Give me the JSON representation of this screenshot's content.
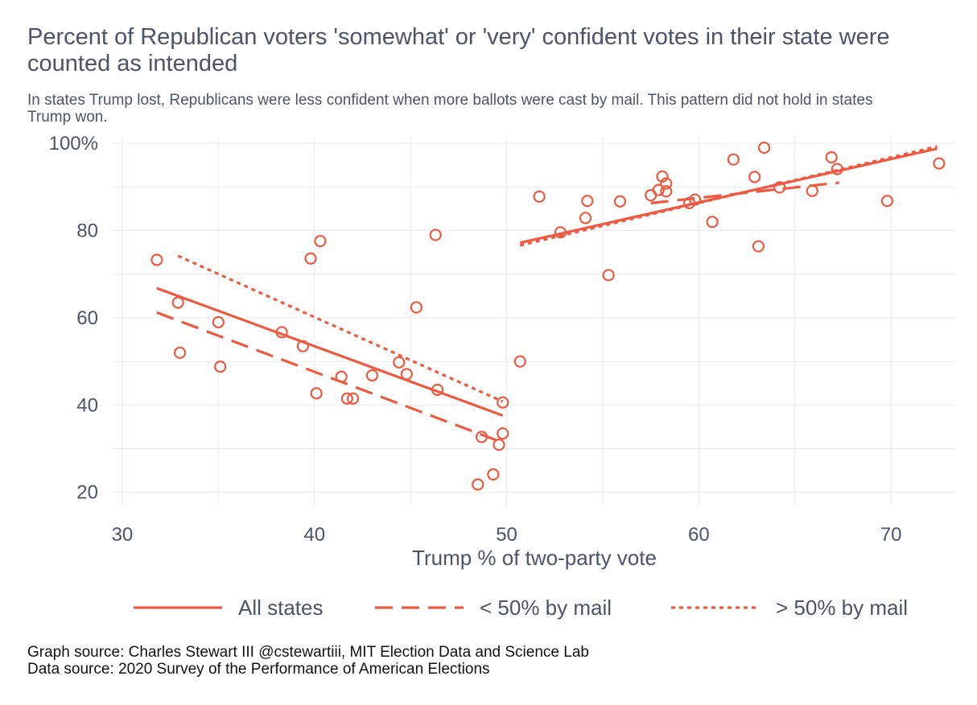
{
  "colors": {
    "accent": "#ee5a40",
    "text": "#4b5468",
    "grid": "#ebebeb"
  },
  "chart_data": {
    "type": "scatter",
    "title": "Percent of Republican voters 'somewhat' or 'very' confident votes in their state were counted as intended",
    "subtitle": "In states Trump lost, Republicans were less confident when more ballots were cast by mail. This pattern did not hold in states Trump won.",
    "xlabel": "Trump % of two-party vote",
    "ylabel": "",
    "xlim": [
      29.5,
      73.3
    ],
    "ylim": [
      17,
      101.5
    ],
    "x_ticks": [
      30,
      40,
      50,
      60,
      70
    ],
    "y_ticks": [
      20,
      40,
      60,
      80,
      100
    ],
    "y_tick_labels": [
      "20",
      "40",
      "60",
      "80",
      "100%"
    ],
    "grid": true,
    "legend_position": "bottom",
    "points": [
      {
        "x": 31.8,
        "y": 73.3
      },
      {
        "x": 32.9,
        "y": 63.5
      },
      {
        "x": 33.0,
        "y": 52.0
      },
      {
        "x": 35.0,
        "y": 59.0
      },
      {
        "x": 35.1,
        "y": 48.8
      },
      {
        "x": 38.3,
        "y": 56.7
      },
      {
        "x": 39.4,
        "y": 53.5
      },
      {
        "x": 39.8,
        "y": 73.6
      },
      {
        "x": 40.1,
        "y": 42.7
      },
      {
        "x": 40.3,
        "y": 77.6
      },
      {
        "x": 41.4,
        "y": 46.5
      },
      {
        "x": 41.7,
        "y": 41.5
      },
      {
        "x": 42.0,
        "y": 41.5
      },
      {
        "x": 43.0,
        "y": 46.8
      },
      {
        "x": 44.4,
        "y": 49.8
      },
      {
        "x": 44.8,
        "y": 47.1
      },
      {
        "x": 45.3,
        "y": 62.4
      },
      {
        "x": 46.3,
        "y": 79.0
      },
      {
        "x": 46.4,
        "y": 43.5
      },
      {
        "x": 48.5,
        "y": 21.8
      },
      {
        "x": 48.7,
        "y": 32.7
      },
      {
        "x": 49.3,
        "y": 24.1
      },
      {
        "x": 49.6,
        "y": 30.9
      },
      {
        "x": 49.8,
        "y": 33.5
      },
      {
        "x": 49.8,
        "y": 40.6
      },
      {
        "x": 50.7,
        "y": 50.0
      },
      {
        "x": 51.7,
        "y": 87.8
      },
      {
        "x": 52.8,
        "y": 79.6
      },
      {
        "x": 54.1,
        "y": 82.9
      },
      {
        "x": 54.2,
        "y": 86.8
      },
      {
        "x": 55.3,
        "y": 69.8
      },
      {
        "x": 55.9,
        "y": 86.7
      },
      {
        "x": 57.5,
        "y": 88.1
      },
      {
        "x": 57.9,
        "y": 89.3
      },
      {
        "x": 58.1,
        "y": 92.4
      },
      {
        "x": 58.3,
        "y": 90.8
      },
      {
        "x": 58.3,
        "y": 89.0
      },
      {
        "x": 59.5,
        "y": 86.3
      },
      {
        "x": 59.8,
        "y": 87.1
      },
      {
        "x": 60.7,
        "y": 82.0
      },
      {
        "x": 61.8,
        "y": 96.3
      },
      {
        "x": 62.9,
        "y": 92.3
      },
      {
        "x": 63.1,
        "y": 76.4
      },
      {
        "x": 63.4,
        "y": 99.0
      },
      {
        "x": 64.2,
        "y": 89.9
      },
      {
        "x": 65.9,
        "y": 89.1
      },
      {
        "x": 66.9,
        "y": 96.8
      },
      {
        "x": 67.2,
        "y": 94.1
      },
      {
        "x": 69.8,
        "y": 86.8
      },
      {
        "x": 72.5,
        "y": 95.4
      }
    ],
    "series": [
      {
        "name": "All states",
        "style": "solid",
        "segments": [
          {
            "x": [
              31.8,
              49.8
            ],
            "y": [
              66.8,
              37.6
            ]
          },
          {
            "x": [
              50.7,
              72.4
            ],
            "y": [
              77.2,
              98.8
            ]
          }
        ]
      },
      {
        "name": "< 50% by mail",
        "style": "dashed",
        "segments": [
          {
            "x": [
              31.8,
              49.8
            ],
            "y": [
              61.2,
              31.4
            ]
          },
          {
            "x": [
              57.5,
              67.3
            ],
            "y": [
              86.3,
              91.0
            ]
          }
        ]
      },
      {
        "name": "> 50% by mail",
        "style": "dotted",
        "segments": [
          {
            "x": [
              32.9,
              49.8
            ],
            "y": [
              74.2,
              40.8
            ]
          },
          {
            "x": [
              50.7,
              72.4
            ],
            "y": [
              76.6,
              99.3
            ]
          }
        ]
      }
    ],
    "source_lines": [
      "Graph source: Charles Stewart III @cstewartiii, MIT Election Data and Science Lab",
      "Data source:  2020 Survey of the Performance of American Elections"
    ]
  }
}
